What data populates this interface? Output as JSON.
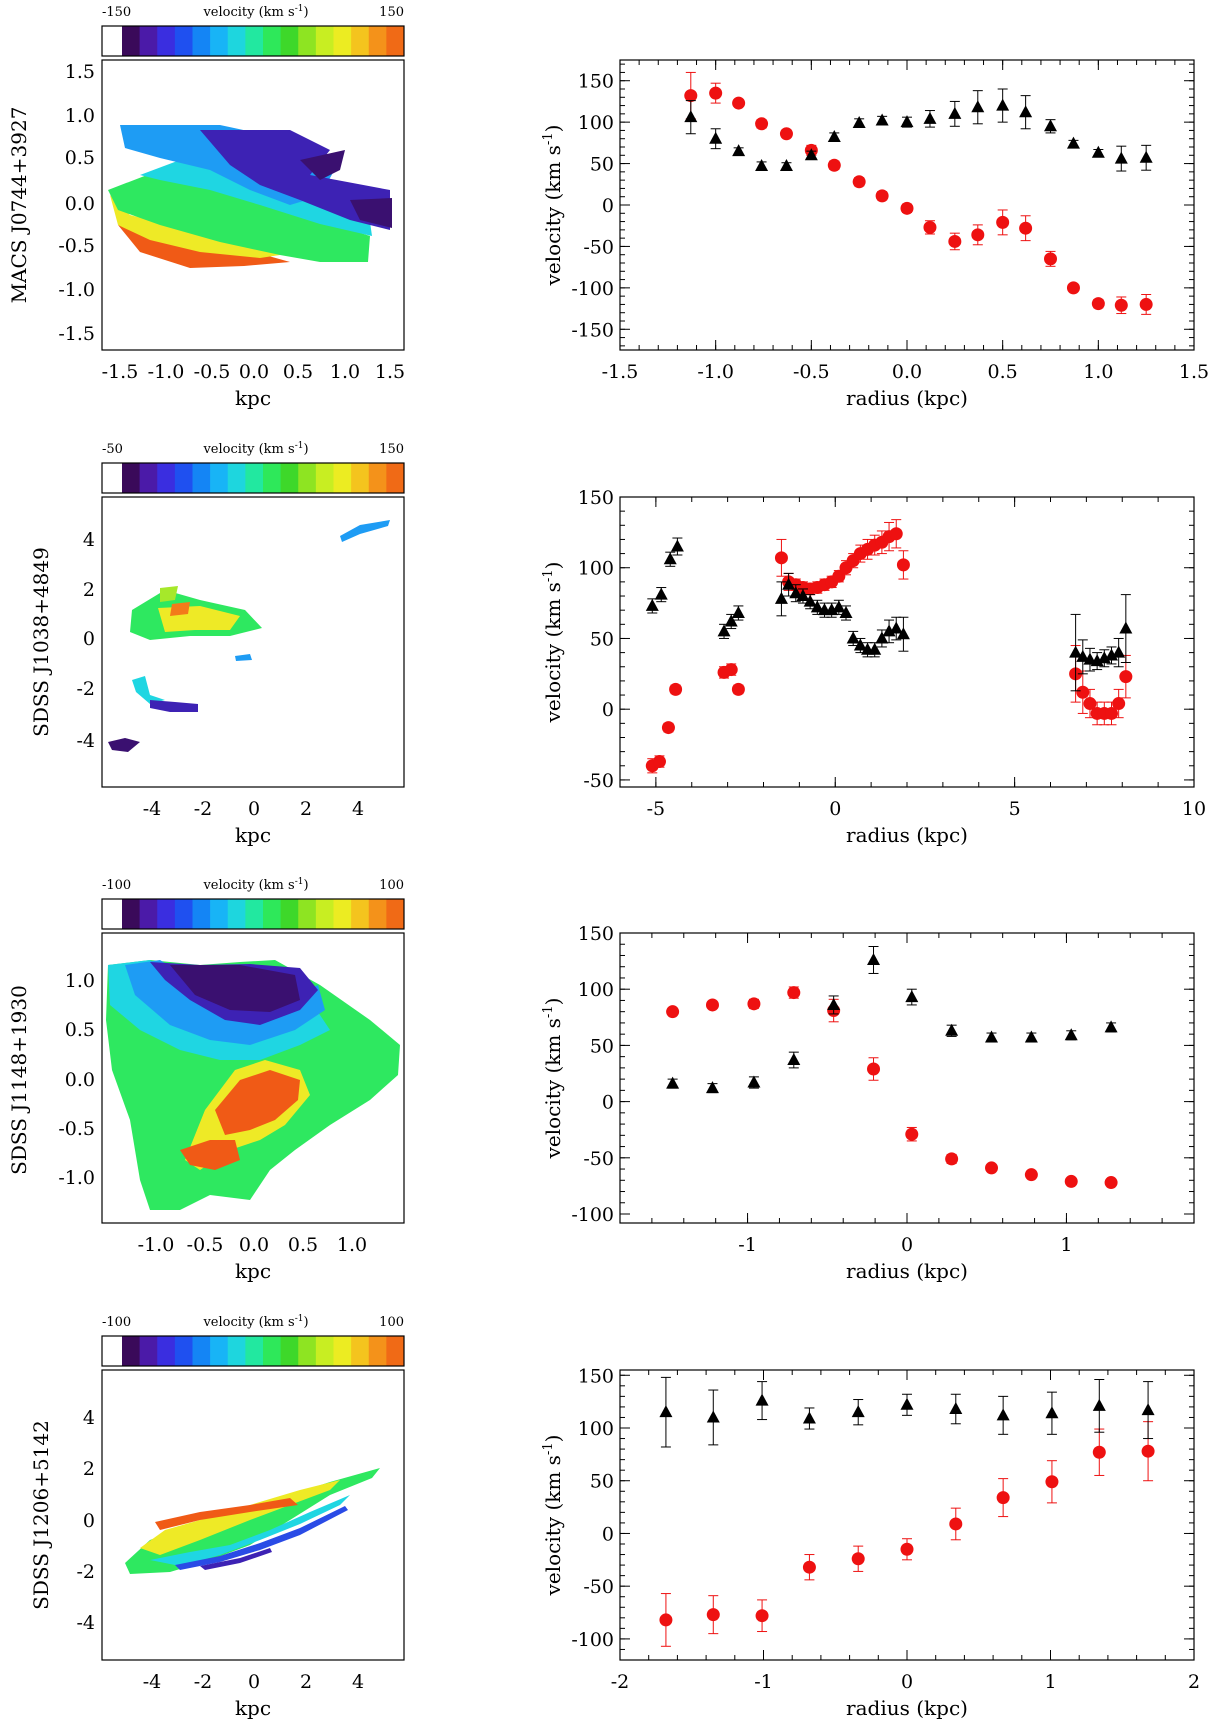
{
  "colorbar_label": "velocity (km s",
  "colorbar_label_sup": "-1",
  "colorbar_colors": [
    "#ffffff",
    "#3a0a5a",
    "#4b1aa8",
    "#3a2ee0",
    "#1f50f0",
    "#1485f5",
    "#18b4f6",
    "#1ed6de",
    "#22e8a0",
    "#2ee85a",
    "#3ed82a",
    "#8ee422",
    "#c8ee22",
    "#ecec22",
    "#f4c41e",
    "#f4921a",
    "#f06a16"
  ],
  "map_axis_label": "kpc",
  "map_colors": {
    "deep_purple": "#3a1070",
    "indigo": "#3d22b4",
    "blue": "#2a4be6",
    "sky": "#1e9cf4",
    "cyan": "#1fd6e2",
    "green": "#2ee860",
    "lime": "#a6e82a",
    "yellow": "#eeea26",
    "orange": "#f37a1a",
    "red_orange": "#f05a16"
  },
  "series_colors": {
    "red": "#ee1111",
    "black": "#000000"
  },
  "rows": [
    {
      "galaxy": "MACS J0744+3927",
      "colorbar_min": "-150",
      "colorbar_max": "150",
      "map_ticks_x": [
        "-1.5",
        "-1.0",
        "-0.5",
        "0.0",
        "0.5",
        "1.0",
        "1.5"
      ],
      "map_ticks_y": [
        "1.5",
        "1.0",
        "0.5",
        "0.0",
        "-0.5",
        "-1.0",
        "-1.5"
      ]
    },
    {
      "galaxy": "SDSS J1038+4849",
      "colorbar_min": "-50",
      "colorbar_max": "150",
      "map_ticks_x": [
        "-4",
        "-2",
        "0",
        "2",
        "4"
      ],
      "map_ticks_y": [
        "4",
        "2",
        "0",
        "-2",
        "-4"
      ]
    },
    {
      "galaxy": "SDSS J1148+1930",
      "colorbar_min": "-100",
      "colorbar_max": "100",
      "map_ticks_x": [
        "-1.0",
        "-0.5",
        "0.0",
        "0.5",
        "1.0"
      ],
      "map_ticks_y": [
        "1.0",
        "0.5",
        "0.0",
        "-0.5",
        "-1.0"
      ]
    },
    {
      "galaxy": "SDSS J1206+5142",
      "colorbar_min": "-100",
      "colorbar_max": "100",
      "map_ticks_x": [
        "-4",
        "-2",
        "0",
        "2",
        "4"
      ],
      "map_ticks_y": [
        "4",
        "2",
        "0",
        "-2",
        "-4"
      ]
    }
  ],
  "chart_data": [
    {
      "type": "scatter",
      "xlabel": "radius (kpc)",
      "ylabel": "velocity (km s",
      "ylabel_sup": "-1",
      "xlim": [
        -1.5,
        1.5
      ],
      "ylim": [
        -175,
        175
      ],
      "xticks": [
        -1.5,
        -1.0,
        -0.5,
        0.0,
        0.5,
        1.0,
        1.5
      ],
      "xtick_labels": [
        "-1.5",
        "-1.0",
        "-0.5",
        "0.0",
        "0.5",
        "1.0",
        "1.5"
      ],
      "yticks": [
        -150,
        -100,
        -50,
        0,
        50,
        100,
        150
      ],
      "ytick_labels": [
        "-150",
        "-100",
        "-50",
        "0",
        "50",
        "100",
        "150"
      ],
      "series": [
        {
          "marker": "circle",
          "color": "red",
          "x": [
            -1.13,
            -1.0,
            -0.88,
            -0.76,
            -0.63,
            -0.5,
            -0.38,
            -0.25,
            -0.13,
            0.0,
            0.12,
            0.25,
            0.37,
            0.5,
            0.62,
            0.75,
            0.87,
            1.0,
            1.12,
            1.25
          ],
          "y": [
            132,
            135,
            123,
            98,
            86,
            66,
            48,
            28,
            11,
            -4,
            -27,
            -44,
            -36,
            -21,
            -28,
            -65,
            -100,
            -119,
            -121,
            -120
          ],
          "err": [
            28,
            12,
            4,
            5,
            4,
            6,
            5,
            5,
            5,
            5,
            8,
            10,
            12,
            15,
            15,
            9,
            4,
            5,
            10,
            12
          ]
        },
        {
          "marker": "triangle",
          "color": "black",
          "x": [
            -1.13,
            -1.0,
            -0.88,
            -0.76,
            -0.63,
            -0.5,
            -0.38,
            -0.25,
            -0.13,
            0.0,
            0.12,
            0.25,
            0.37,
            0.5,
            0.62,
            0.75,
            0.87,
            1.0,
            1.12,
            1.25
          ],
          "y": [
            106,
            80,
            65,
            47,
            47,
            60,
            82,
            99,
            102,
            100,
            104,
            110,
            118,
            120,
            112,
            95,
            74,
            63,
            56,
            57
          ],
          "err": [
            20,
            12,
            4,
            5,
            4,
            5,
            5,
            5,
            5,
            6,
            10,
            15,
            20,
            20,
            20,
            8,
            4,
            4,
            15,
            15
          ]
        }
      ]
    },
    {
      "type": "scatter",
      "xlabel": "radius (kpc)",
      "ylabel": "velocity (km s",
      "ylabel_sup": "-1",
      "xlim": [
        -6,
        10
      ],
      "ylim": [
        -55,
        150
      ],
      "xticks": [
        -5,
        0,
        5,
        10
      ],
      "xtick_labels": [
        "-5",
        "0",
        "5",
        "10"
      ],
      "yticks": [
        -50,
        0,
        50,
        100,
        150
      ],
      "ytick_labels": [
        "-50",
        "0",
        "50",
        "100",
        "150"
      ],
      "series": [
        {
          "marker": "circle",
          "color": "red",
          "x": [
            -5.1,
            -4.9,
            -4.65,
            -4.45,
            -3.1,
            -2.9,
            -2.7,
            -1.5,
            -1.3,
            -1.1,
            -0.9,
            -0.7,
            -0.5,
            -0.3,
            -0.1,
            0.1,
            0.3,
            0.5,
            0.7,
            0.9,
            1.1,
            1.3,
            1.5,
            1.7,
            1.9,
            6.7,
            6.9,
            7.1,
            7.3,
            7.5,
            7.7,
            7.9,
            8.1
          ],
          "y": [
            -40,
            -37,
            -13,
            14,
            26,
            28,
            14,
            107,
            90,
            88,
            86,
            85,
            86,
            88,
            90,
            94,
            100,
            105,
            110,
            113,
            116,
            118,
            122,
            124,
            102,
            25,
            12,
            4,
            -3,
            -3,
            -3,
            4,
            23
          ],
          "err": [
            5,
            4,
            3,
            3,
            4,
            4,
            3,
            13,
            6,
            4,
            4,
            4,
            4,
            4,
            4,
            4,
            5,
            5,
            6,
            7,
            7,
            8,
            10,
            10,
            10,
            20,
            15,
            10,
            8,
            8,
            8,
            10,
            15
          ]
        },
        {
          "marker": "triangle",
          "color": "black",
          "x": [
            -5.1,
            -4.85,
            -4.6,
            -4.4,
            -3.1,
            -2.9,
            -2.7,
            -1.5,
            -1.3,
            -1.1,
            -0.9,
            -0.7,
            -0.5,
            -0.3,
            -0.1,
            0.1,
            0.3,
            0.5,
            0.7,
            0.9,
            1.1,
            1.3,
            1.5,
            1.7,
            1.9,
            6.7,
            6.9,
            7.1,
            7.3,
            7.5,
            7.7,
            7.9,
            8.1
          ],
          "y": [
            73,
            81,
            106,
            115,
            55,
            62,
            68,
            78,
            88,
            82,
            80,
            76,
            72,
            70,
            70,
            72,
            68,
            50,
            45,
            42,
            42,
            50,
            55,
            57,
            53,
            40,
            37,
            35,
            34,
            36,
            38,
            40,
            57
          ],
          "err": [
            5,
            5,
            5,
            6,
            5,
            5,
            5,
            12,
            8,
            6,
            5,
            5,
            5,
            5,
            5,
            5,
            5,
            5,
            5,
            5,
            5,
            6,
            8,
            8,
            12,
            27,
            12,
            8,
            6,
            6,
            6,
            10,
            24
          ]
        }
      ]
    },
    {
      "type": "scatter",
      "xlabel": "radius (kpc)",
      "ylabel": "velocity (km s",
      "ylabel_sup": "-1",
      "xlim": [
        -1.8,
        1.8
      ],
      "ylim": [
        -108,
        150
      ],
      "xticks": [
        -1,
        0,
        1
      ],
      "xtick_labels": [
        "-1",
        "0",
        "1"
      ],
      "yticks": [
        -100,
        -50,
        0,
        50,
        100,
        150
      ],
      "ytick_labels": [
        "-100",
        "-50",
        "0",
        "50",
        "100",
        "150"
      ],
      "series": [
        {
          "marker": "circle",
          "color": "red",
          "x": [
            -1.47,
            -1.22,
            -0.96,
            -0.71,
            -0.46,
            -0.21,
            0.03,
            0.28,
            0.53,
            0.78,
            1.03,
            1.28
          ],
          "y": [
            80,
            86,
            87,
            97,
            81,
            29,
            -29,
            -51,
            -59,
            -65,
            -71,
            -72
          ],
          "err": [
            3,
            3,
            4,
            5,
            10,
            10,
            6,
            4,
            3,
            3,
            3,
            3
          ]
        },
        {
          "marker": "triangle",
          "color": "black",
          "x": [
            -1.47,
            -1.22,
            -0.96,
            -0.71,
            -0.46,
            -0.21,
            0.03,
            0.28,
            0.53,
            0.78,
            1.03,
            1.28
          ],
          "y": [
            16,
            12,
            17,
            37,
            86,
            126,
            93,
            63,
            57,
            57,
            59,
            66
          ],
          "err": [
            4,
            4,
            5,
            7,
            8,
            12,
            7,
            5,
            4,
            4,
            4,
            4
          ]
        }
      ]
    },
    {
      "type": "scatter",
      "xlabel": "radius (kpc)",
      "ylabel": "velocity (km s",
      "ylabel_sup": "-1",
      "xlim": [
        -2,
        2
      ],
      "ylim": [
        -120,
        155
      ],
      "xticks": [
        -2,
        -1,
        0,
        1,
        2
      ],
      "xtick_labels": [
        "-2",
        "-1",
        "0",
        "1",
        "2"
      ],
      "yticks": [
        -100,
        -50,
        0,
        50,
        100,
        150
      ],
      "ytick_labels": [
        "-100",
        "-50",
        "0",
        "50",
        "100",
        "150"
      ],
      "series": [
        {
          "marker": "circle",
          "color": "red",
          "x": [
            -1.68,
            -1.35,
            -1.01,
            -0.68,
            -0.34,
            0.0,
            0.34,
            0.67,
            1.01,
            1.34,
            1.68
          ],
          "y": [
            -82,
            -77,
            -78,
            -32,
            -24,
            -15,
            9,
            34,
            49,
            77,
            78
          ],
          "err": [
            25,
            18,
            15,
            12,
            12,
            10,
            15,
            18,
            20,
            22,
            28
          ]
        },
        {
          "marker": "triangle",
          "color": "black",
          "x": [
            -1.68,
            -1.35,
            -1.01,
            -0.68,
            -0.34,
            0.0,
            0.34,
            0.67,
            1.01,
            1.34,
            1.68
          ],
          "y": [
            115,
            110,
            126,
            109,
            115,
            122,
            118,
            112,
            114,
            121,
            117
          ],
          "err": [
            33,
            26,
            18,
            10,
            12,
            10,
            14,
            18,
            20,
            25,
            27
          ]
        }
      ]
    }
  ]
}
